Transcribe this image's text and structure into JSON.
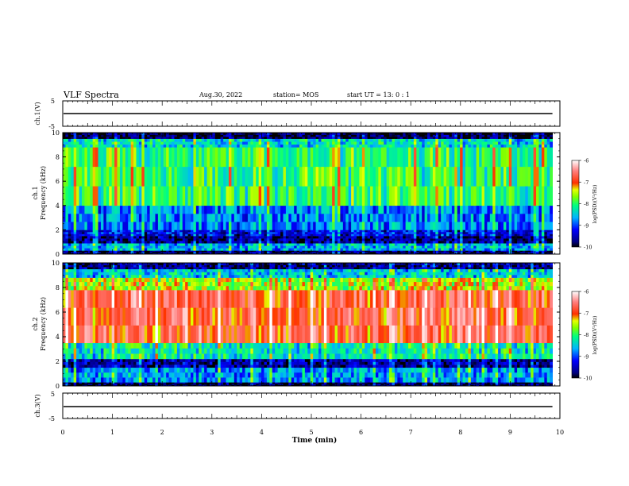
{
  "header": {
    "title": "VLF Spectra",
    "date": "Aug.30, 2022",
    "station": "station= MOS",
    "start": "start  UT =   13: 0  : 1"
  },
  "colors": {
    "colorbar": [
      "#000080",
      "#0000ff",
      "#00c8ff",
      "#00ff66",
      "#c8ff00",
      "#ff2000",
      "#ffffff"
    ]
  },
  "chart_data": [
    {
      "type": "line",
      "panel": "ch1-waveform",
      "ylabel": "ch.1(V)",
      "ylim": [
        -5,
        5
      ],
      "yticks": [
        "5",
        "-5"
      ],
      "values_note": "",
      "level": 0
    },
    {
      "type": "heatmap",
      "panel": "ch1-spectrogram",
      "ylabel_top": "ch.1",
      "ylabel": "Frequency (kHz)",
      "ylim": [
        0,
        10
      ],
      "yticks": [
        "0",
        "2",
        "4",
        "6",
        "8",
        "10"
      ],
      "xlim": [
        0,
        10
      ],
      "bands": [
        {
          "from": 0,
          "to": 0.3,
          "level": -9.8
        },
        {
          "from": 0.3,
          "to": 0.9,
          "level": -8.6
        },
        {
          "from": 0.9,
          "to": 1.5,
          "level": -9.7
        },
        {
          "from": 1.5,
          "to": 2.0,
          "level": -9.3
        },
        {
          "from": 2.0,
          "to": 4.0,
          "level": -8.8
        },
        {
          "from": 4.0,
          "to": 8.8,
          "level": -8.0
        },
        {
          "from": 8.8,
          "to": 9.5,
          "level": -8.4
        },
        {
          "from": 9.5,
          "to": 10.0,
          "level": -9.9
        }
      ],
      "colorbar": {
        "label": "log(PSD)(V²/Hz)",
        "ticks": [
          "-6",
          "-7",
          "-8",
          "-9",
          "-10"
        ],
        "range": [
          -10,
          -6
        ]
      }
    },
    {
      "type": "heatmap",
      "panel": "ch2-spectrogram",
      "ylabel_top": "ch.2",
      "ylabel": "Frequency (kHz)",
      "ylim": [
        0,
        10
      ],
      "yticks": [
        "0",
        "2",
        "4",
        "6",
        "8",
        "10"
      ],
      "xlim": [
        0,
        10
      ],
      "bands": [
        {
          "from": 0,
          "to": 0.3,
          "level": -9.9
        },
        {
          "from": 0.3,
          "to": 1.5,
          "level": -8.7
        },
        {
          "from": 1.5,
          "to": 2.2,
          "level": -9.6
        },
        {
          "from": 2.2,
          "to": 3.5,
          "level": -8.3
        },
        {
          "from": 3.5,
          "to": 7.8,
          "level": -6.8
        },
        {
          "from": 7.8,
          "to": 8.8,
          "level": -7.6
        },
        {
          "from": 8.8,
          "to": 9.5,
          "level": -8.5
        },
        {
          "from": 9.5,
          "to": 10.0,
          "level": -9.7
        }
      ],
      "colorbar": {
        "label": "log(PSD)(V²/Hz)",
        "ticks": [
          "-6",
          "-7",
          "-8",
          "-9",
          "-10"
        ],
        "range": [
          -10,
          -6
        ]
      }
    },
    {
      "type": "line",
      "panel": "ch3-waveform",
      "ylabel": "ch.3(V)",
      "ylim": [
        -5,
        5
      ],
      "yticks": [
        "5",
        "-5"
      ],
      "level": 0
    }
  ],
  "xaxis": {
    "label": "Time (min)",
    "ticks": [
      "0",
      "1",
      "2",
      "3",
      "4",
      "5",
      "6",
      "7",
      "8",
      "9",
      "10"
    ],
    "range": [
      0,
      10
    ],
    "data_end": 9.85
  }
}
